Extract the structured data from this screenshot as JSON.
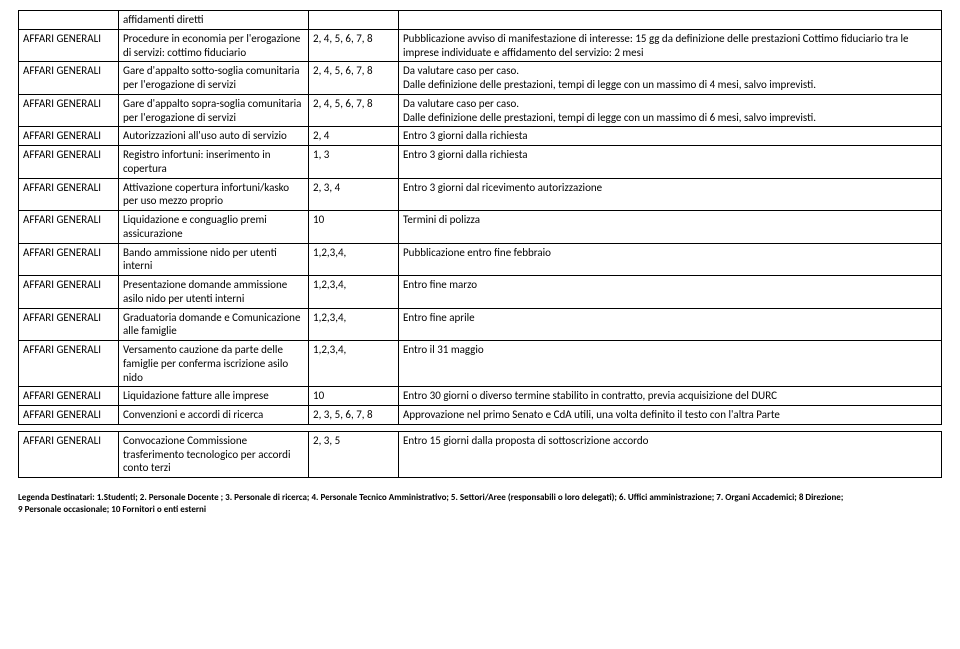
{
  "rows": [
    {
      "c1": "",
      "c2": "affidamenti diretti",
      "c3": "",
      "c4": ""
    },
    {
      "c1": "AFFARI GENERALI",
      "c2": "Procedure in economia per l'erogazione di servizi: cottimo fiduciario",
      "c3": "2, 4, 5, 6, 7, 8",
      "c4": "Pubblicazione avviso di manifestazione di interesse: 15 gg da definizione delle prestazioni Cottimo fiduciario tra le imprese individuate e affidamento del servizio: 2 mesi"
    },
    {
      "c1": "AFFARI GENERALI",
      "c2": "Gare d'appalto sotto-soglia comunitaria per l'erogazione di servizi",
      "c3": "2, 4, 5, 6, 7, 8",
      "c4": "Da valutare caso per caso.\nDalle definizione delle prestazioni, tempi di legge con un massimo di 4 mesi, salvo imprevisti."
    },
    {
      "c1": "AFFARI GENERALI",
      "c2": "Gare d'appalto sopra-soglia comunitaria  per l'erogazione di servizi",
      "c3": "2, 4, 5, 6, 7, 8",
      "c4": "Da valutare caso per caso.\nDalle definizione delle prestazioni, tempi di legge con un massimo di 6 mesi, salvo imprevisti."
    },
    {
      "c1": "AFFARI GENERALI",
      "c2": "Autorizzazioni all'uso auto di servizio",
      "c3": "2, 4",
      "c4": "Entro 3 giorni dalla richiesta"
    },
    {
      "c1": "AFFARI GENERALI",
      "c2": "Registro infortuni: inserimento in copertura",
      "c3": "1, 3",
      "c4": "Entro 3 giorni dalla richiesta"
    },
    {
      "c1": "AFFARI GENERALI",
      "c2": "Attivazione copertura infortuni/kasko per uso mezzo proprio",
      "c3": "2, 3, 4",
      "c4": "Entro 3 giorni dal ricevimento autorizzazione"
    },
    {
      "c1": "AFFARI GENERALI",
      "c2": "Liquidazione e conguaglio premi assicurazione",
      "c3": "10",
      "c4": "Termini di polizza"
    },
    {
      "c1": "AFFARI GENERALI",
      "c2": "Bando ammissione nido per utenti interni",
      "c3": "1,2,3,4,",
      "c4": "Pubblicazione entro fine febbraio"
    },
    {
      "c1": "AFFARI GENERALI",
      "c2": "Presentazione domande ammissione asilo nido per utenti interni",
      "c3": "1,2,3,4,",
      "c4": "Entro fine marzo"
    },
    {
      "c1": "AFFARI GENERALI",
      "c2": "Graduatoria domande e Comunicazione alle famiglie",
      "c3": "1,2,3,4,",
      "c4": "Entro fine aprile"
    },
    {
      "c1": "AFFARI GENERALI",
      "c2": "Versamento cauzione da parte delle famiglie per conferma iscrizione asilo nido",
      "c3": "1,2,3,4,",
      "c4": "Entro il 31 maggio"
    },
    {
      "c1": "AFFARI GENERALI",
      "c2": "Liquidazione fatture alle imprese",
      "c3": "10",
      "c4": "Entro 30 giorni o diverso termine stabilito in contratto, previa acquisizione del DURC"
    },
    {
      "c1": "AFFARI GENERALI",
      "c2": "Convenzioni e accordi di ricerca",
      "c3": "2, 3, 5, 6, 7, 8",
      "c4": "Approvazione nel primo Senato e CdA utili, una volta definito  il testo con l'altra Parte"
    }
  ],
  "rows2": [
    {
      "c1": "AFFARI GENERALI",
      "c2": "Convocazione Commissione trasferimento tecnologico per accordi conto terzi",
      "c3": "2, 3, 5",
      "c4": "Entro 15 giorni dalla proposta di sottoscrizione accordo"
    }
  ],
  "footer": {
    "line1": "Legenda Destinatari: 1.Studenti; 2. Personale Docente ; 3. Personale di ricerca; 4. Personale Tecnico Amministrativo; 5. Settori/Aree (responsabili o loro delegati); 6. Uffici amministrazione; 7. Organi Accademici; 8 Direzione;",
    "line2": "9 Personale occasionale; 10 Fornitori o enti esterni"
  }
}
